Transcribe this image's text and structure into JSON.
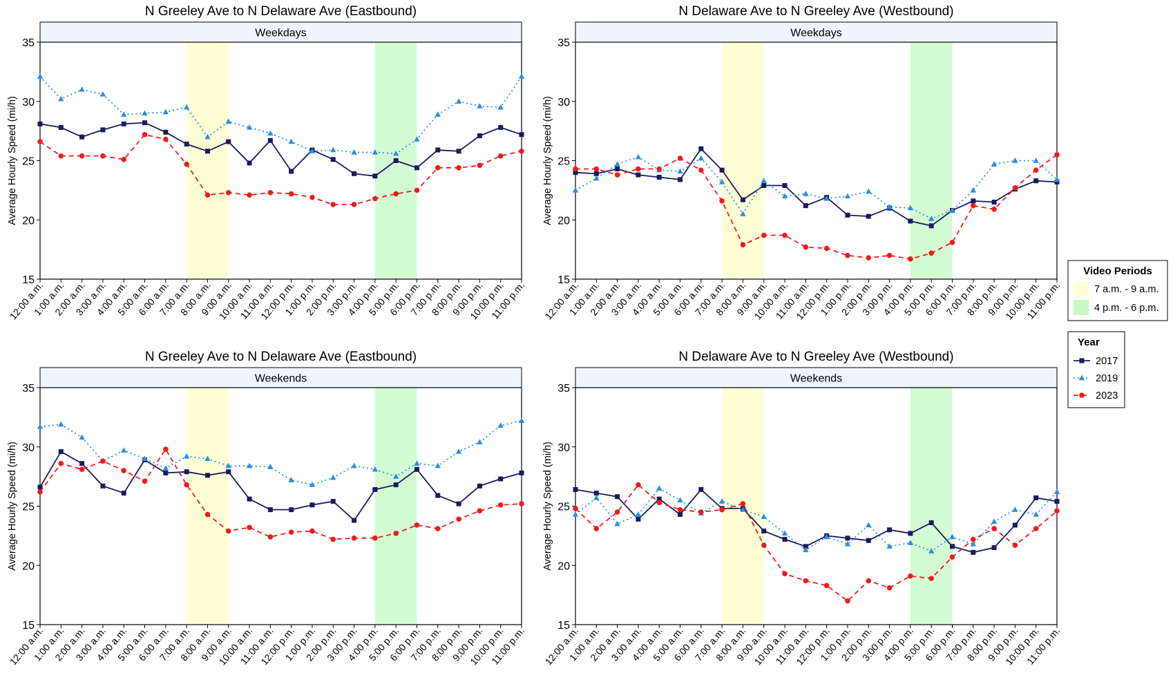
{
  "x_categories": [
    "12:00 a.m.",
    "1:00 a.m.",
    "2:00 a.m.",
    "3:00 a.m.",
    "4:00 a.m.",
    "5:00 a.m.",
    "6:00 a.m.",
    "7:00 a.m.",
    "8:00 a.m.",
    "9:00 a.m.",
    "10:00 a.m.",
    "11:00 a.m.",
    "12:00 p.m.",
    "1:00 p.m.",
    "2:00 p.m.",
    "3:00 p.m.",
    "4:00 p.m.",
    "5:00 p.m.",
    "6:00 p.m.",
    "7:00 p.m.",
    "8:00 p.m.",
    "9:00 p.m.",
    "10:00 p.m.",
    "11:00 p.m."
  ],
  "ylabel": "Average Hourly Speed (mi/h)",
  "ylim": [
    15,
    35
  ],
  "yticks": [
    15,
    20,
    25,
    30,
    35
  ],
  "colors": {
    "2017": "#1a1a5e",
    "2019": "#2a8fe6",
    "2023": "#ee1c1c",
    "am_band": "#ffffd6",
    "pm_band": "#d3fcd3",
    "strip": "#eef5fe"
  },
  "legend_video": {
    "title": "Video Periods",
    "items": [
      {
        "label": "7 a.m. - 9 a.m.",
        "color": "#ffffd6"
      },
      {
        "label": "4 p.m. - 6 p.m.",
        "color": "#c6f9c6"
      }
    ]
  },
  "legend_year": {
    "title": "Year",
    "items": [
      {
        "label": "2017",
        "color": "#1a1a5e",
        "marker": "square",
        "dash": "solid"
      },
      {
        "label": "2019",
        "color": "#2a8fe6",
        "marker": "triangle",
        "dash": "dotted"
      },
      {
        "label": "2023",
        "color": "#ee1c1c",
        "marker": "circle",
        "dash": "dashed"
      }
    ]
  },
  "chart_data": [
    {
      "type": "line",
      "title": "N Greeley Ave to N Delaware Ave (Eastbound)",
      "strip": "Weekdays",
      "xlabel": "",
      "ylabel": "Average Hourly Speed (mi/h)",
      "ylim": [
        15,
        35
      ],
      "video_periods": [
        {
          "from": "7:00 a.m.",
          "to": "9:00 a.m."
        },
        {
          "from": "4:00 p.m.",
          "to": "6:00 p.m."
        }
      ],
      "series": [
        {
          "name": "2017",
          "values": [
            28.1,
            27.8,
            27.0,
            27.6,
            28.1,
            28.2,
            27.4,
            26.4,
            25.8,
            26.6,
            24.8,
            26.7,
            24.1,
            25.9,
            25.1,
            23.9,
            23.7,
            25.0,
            24.4,
            25.9,
            25.8,
            27.1,
            27.8,
            27.2
          ]
        },
        {
          "name": "2019",
          "values": [
            32.1,
            30.2,
            31.0,
            30.6,
            28.9,
            29.0,
            29.1,
            29.5,
            27.0,
            28.3,
            27.8,
            27.3,
            26.6,
            25.8,
            25.9,
            25.7,
            25.7,
            25.6,
            26.8,
            28.9,
            30.0,
            29.6,
            29.5,
            32.1
          ]
        },
        {
          "name": "2023",
          "values": [
            26.6,
            25.4,
            25.4,
            25.4,
            25.1,
            27.2,
            26.8,
            24.7,
            22.1,
            22.3,
            22.1,
            22.3,
            22.2,
            21.9,
            21.3,
            21.3,
            21.8,
            22.2,
            22.5,
            24.4,
            24.4,
            24.6,
            25.4,
            25.8
          ]
        }
      ]
    },
    {
      "type": "line",
      "title": "N Delaware Ave to N Greeley Ave (Westbound)",
      "strip": "Weekdays",
      "xlabel": "",
      "ylabel": "Average Hourly Speed (mi/h)",
      "ylim": [
        15,
        35
      ],
      "video_periods": [
        {
          "from": "7:00 a.m.",
          "to": "9:00 a.m."
        },
        {
          "from": "4:00 p.m.",
          "to": "6:00 p.m."
        }
      ],
      "series": [
        {
          "name": "2017",
          "values": [
            24.0,
            23.9,
            24.3,
            23.8,
            23.6,
            23.4,
            26.0,
            24.2,
            21.7,
            22.9,
            22.9,
            21.2,
            21.9,
            20.4,
            20.3,
            21.0,
            19.9,
            19.5,
            20.8,
            21.6,
            21.5,
            22.6,
            23.3,
            23.2
          ]
        },
        {
          "name": "2019",
          "values": [
            22.5,
            23.5,
            24.7,
            25.3,
            24.2,
            24.1,
            25.2,
            23.2,
            20.5,
            23.3,
            22.0,
            22.2,
            21.8,
            22.0,
            22.4,
            21.1,
            21.0,
            20.1,
            20.8,
            22.5,
            24.7,
            25.0,
            25.0,
            23.4
          ]
        },
        {
          "name": "2023",
          "values": [
            24.3,
            24.3,
            23.8,
            24.3,
            24.3,
            25.2,
            24.2,
            21.6,
            17.9,
            18.7,
            18.7,
            17.7,
            17.6,
            17.0,
            16.8,
            17.0,
            16.7,
            17.2,
            18.1,
            21.2,
            20.9,
            22.7,
            24.2,
            25.5
          ]
        }
      ]
    },
    {
      "type": "line",
      "title": "N Greeley Ave to N Delaware Ave (Eastbound)",
      "strip": "Weekends",
      "xlabel": "",
      "ylabel": "Average Hourly Speed (mi/h)",
      "ylim": [
        15,
        35
      ],
      "video_periods": [
        {
          "from": "7:00 a.m.",
          "to": "9:00 a.m."
        },
        {
          "from": "4:00 p.m.",
          "to": "6:00 p.m."
        }
      ],
      "series": [
        {
          "name": "2017",
          "values": [
            26.6,
            29.6,
            28.6,
            26.7,
            26.1,
            28.9,
            27.8,
            27.9,
            27.6,
            27.9,
            25.6,
            24.7,
            24.7,
            25.1,
            25.4,
            23.8,
            26.4,
            26.8,
            28.1,
            25.9,
            25.2,
            26.7,
            27.3,
            27.8
          ]
        },
        {
          "name": "2019",
          "values": [
            31.7,
            31.9,
            30.8,
            28.8,
            29.7,
            29.0,
            28.2,
            29.2,
            29.0,
            28.4,
            28.4,
            28.3,
            27.2,
            26.8,
            27.4,
            28.4,
            28.1,
            27.5,
            28.6,
            28.4,
            29.6,
            30.4,
            31.8,
            32.2
          ]
        },
        {
          "name": "2023",
          "values": [
            26.2,
            28.6,
            28.1,
            28.8,
            28.0,
            27.1,
            29.8,
            26.8,
            24.3,
            22.9,
            23.2,
            22.4,
            22.8,
            22.9,
            22.2,
            22.3,
            22.3,
            22.7,
            23.4,
            23.1,
            23.9,
            24.6,
            25.1,
            25.2
          ]
        }
      ]
    },
    {
      "type": "line",
      "title": "N Delaware Ave to N Greeley Ave (Westbound)",
      "strip": "Weekends",
      "xlabel": "",
      "ylabel": "Average Hourly Speed (mi/h)",
      "ylim": [
        15,
        35
      ],
      "video_periods": [
        {
          "from": "7:00 a.m.",
          "to": "9:00 a.m."
        },
        {
          "from": "4:00 p.m.",
          "to": "6:00 p.m."
        }
      ],
      "series": [
        {
          "name": "2017",
          "values": [
            26.4,
            26.1,
            25.8,
            23.9,
            25.6,
            24.3,
            26.4,
            24.8,
            24.8,
            22.9,
            22.2,
            21.6,
            22.5,
            22.3,
            22.1,
            23.0,
            22.7,
            23.6,
            21.6,
            21.1,
            21.5,
            23.4,
            25.7,
            25.4
          ]
        },
        {
          "name": "2019",
          "values": [
            24.3,
            25.7,
            23.5,
            24.3,
            26.5,
            25.5,
            24.4,
            25.4,
            24.7,
            24.1,
            22.7,
            21.3,
            22.4,
            21.8,
            23.4,
            21.6,
            21.9,
            21.2,
            22.4,
            21.8,
            23.7,
            24.7,
            24.3,
            26.2
          ]
        },
        {
          "name": "2023",
          "values": [
            24.8,
            23.1,
            24.5,
            26.8,
            25.3,
            24.7,
            24.5,
            24.7,
            25.2,
            21.7,
            19.3,
            18.7,
            18.3,
            17.0,
            18.7,
            18.1,
            19.1,
            18.9,
            20.7,
            22.2,
            23.1,
            21.7,
            23.1,
            24.6
          ]
        }
      ]
    }
  ]
}
